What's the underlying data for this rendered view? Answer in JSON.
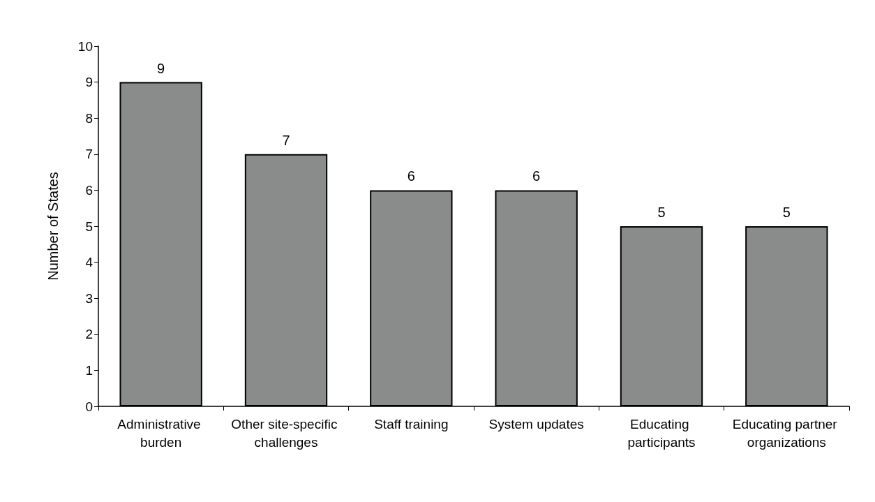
{
  "chart_data": {
    "type": "bar",
    "ylabel": "Number of States",
    "categories": [
      "Administrative burden",
      "Other site-specific challenges",
      "Staff training",
      "System updates",
      "Educating participants",
      "Educating partner organizations"
    ],
    "values": [
      9,
      7,
      6,
      6,
      5,
      5
    ],
    "color": "#8a8c8c",
    "ylim": [
      0,
      10
    ],
    "yticks": [
      0,
      1,
      2,
      3,
      4,
      5,
      6,
      7,
      8,
      9,
      10
    ],
    "grid": false,
    "data_labels": true
  }
}
